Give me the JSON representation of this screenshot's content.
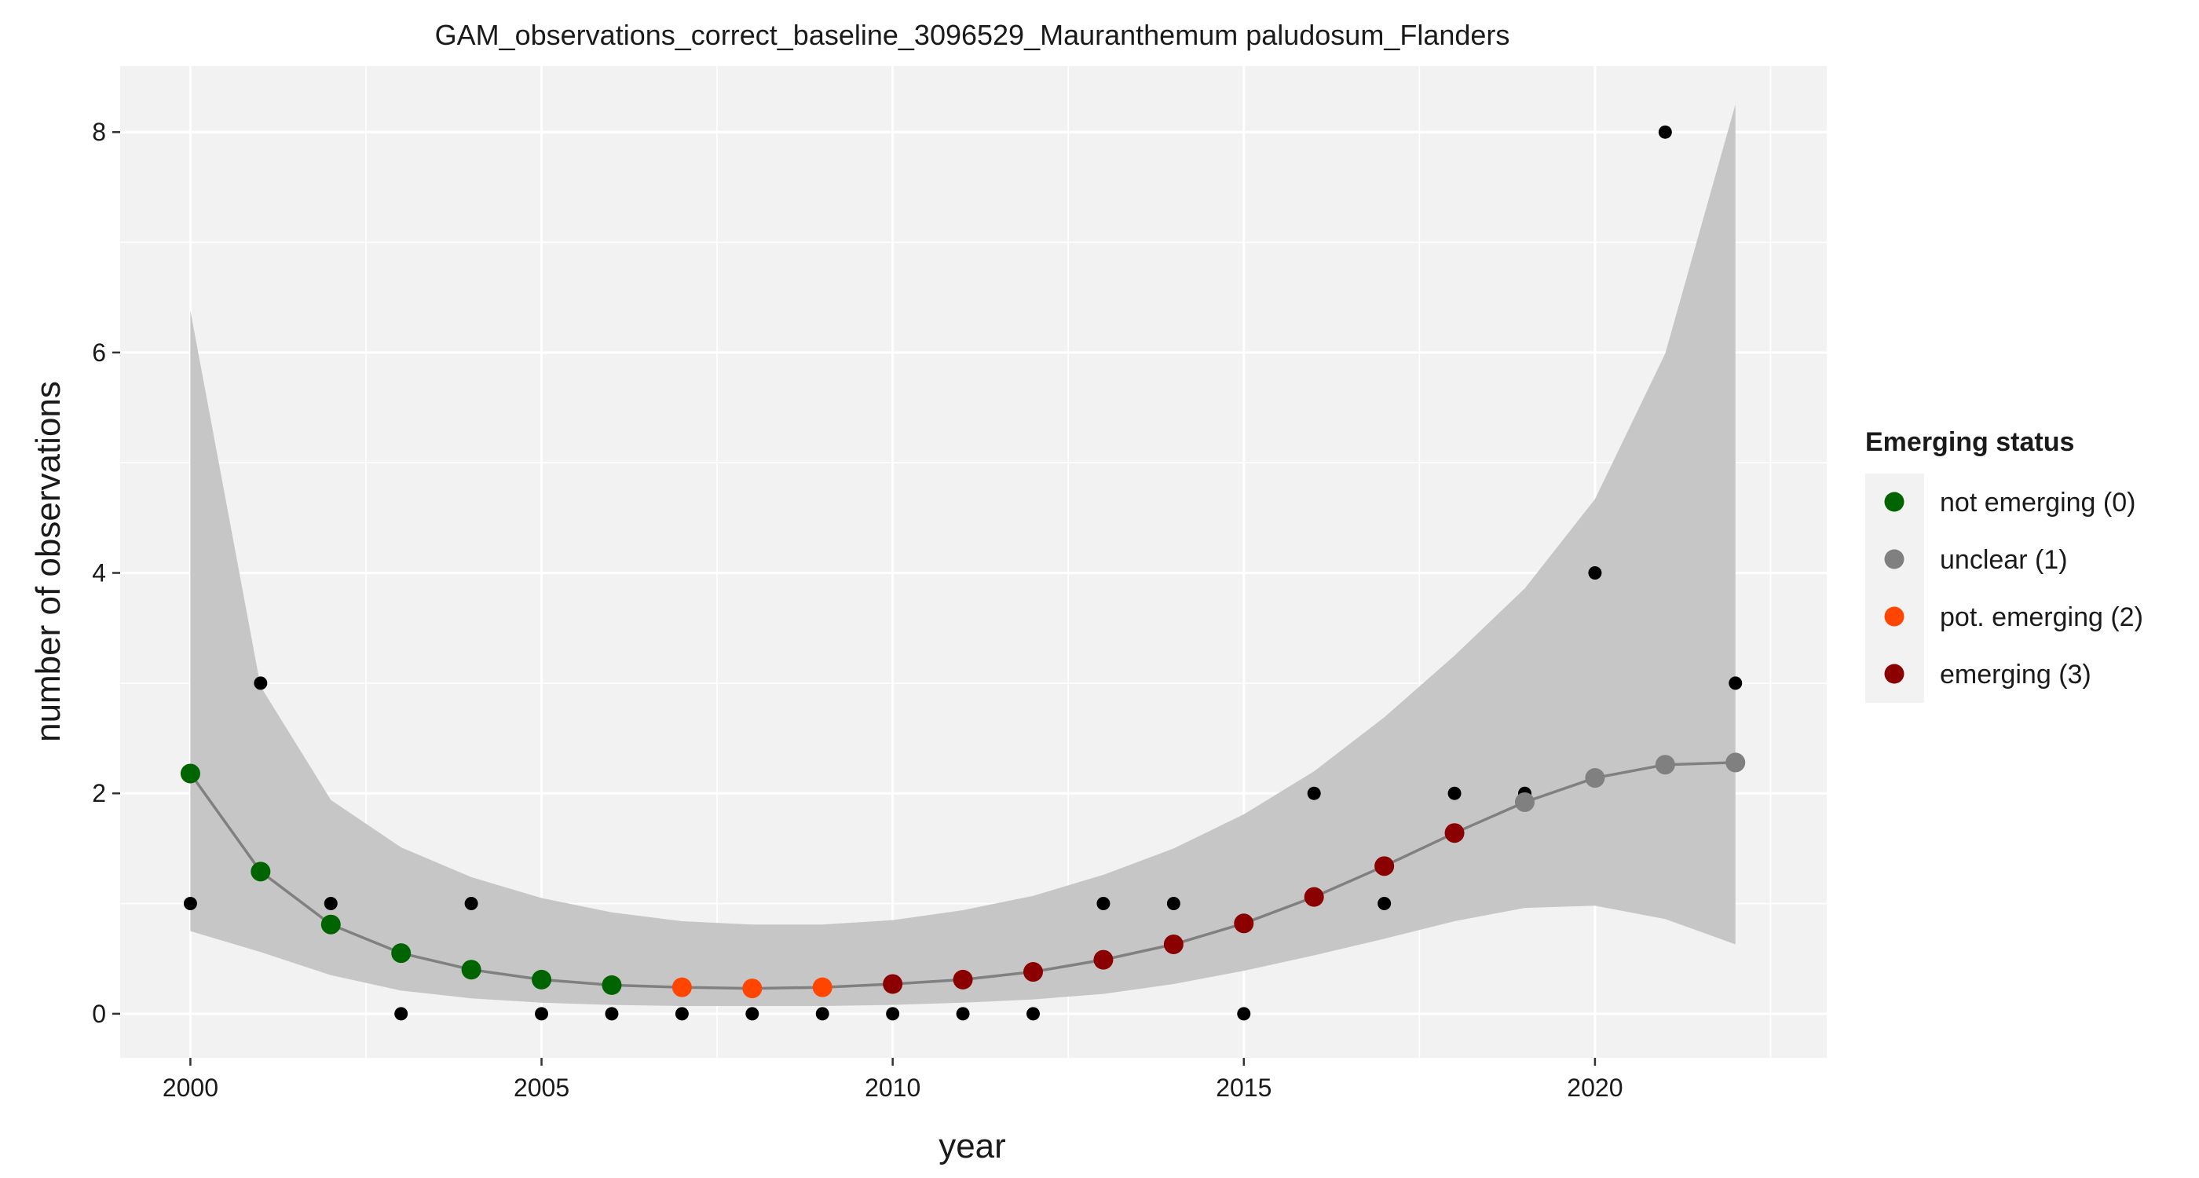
{
  "chart_data": {
    "type": "scatter",
    "title": "GAM_observations_correct_baseline_3096529_Mauranthemum paludosum_Flanders",
    "xlabel": "year",
    "ylabel": "number of observations",
    "xlim": [
      1999,
      2023.3
    ],
    "ylim": [
      -0.4,
      8.6
    ],
    "x_ticks": [
      2000,
      2005,
      2010,
      2015,
      2020
    ],
    "y_ticks": [
      0,
      2,
      4,
      6,
      8
    ],
    "grid": true,
    "legend_position": "right",
    "colors": {
      "panel": "#f2f2f2",
      "grid": "#ffffff",
      "ribbon": "#c6c6c6",
      "fit_line": "#808080",
      "observed": "#000000"
    },
    "legend": {
      "title": "Emerging status",
      "items": [
        {
          "label": "not emerging (0)",
          "status": 0,
          "color": "#006400"
        },
        {
          "label": "unclear (1)",
          "status": 1,
          "color": "#808080"
        },
        {
          "label": "pot. emerging (2)",
          "status": 2,
          "color": "#ff4500"
        },
        {
          "label": "emerging (3)",
          "status": 3,
          "color": "#8b0000"
        }
      ]
    },
    "series": [
      {
        "role": "observed",
        "x": [
          2000,
          2001,
          2002,
          2003,
          2004,
          2005,
          2006,
          2007,
          2008,
          2009,
          2010,
          2011,
          2012,
          2013,
          2014,
          2015,
          2016,
          2017,
          2018,
          2019,
          2020,
          2021,
          2022
        ],
        "values": [
          1,
          3,
          1,
          0,
          1,
          0,
          0,
          0,
          0,
          0,
          0,
          0,
          0,
          1,
          1,
          0,
          2,
          1,
          2,
          2,
          4,
          8,
          3
        ]
      },
      {
        "role": "fit",
        "x": [
          2000,
          2001,
          2002,
          2003,
          2004,
          2005,
          2006,
          2007,
          2008,
          2009,
          2010,
          2011,
          2012,
          2013,
          2014,
          2015,
          2016,
          2017,
          2018,
          2019,
          2020,
          2021,
          2022
        ],
        "values": [
          2.18,
          1.29,
          0.81,
          0.55,
          0.4,
          0.31,
          0.26,
          0.24,
          0.23,
          0.24,
          0.27,
          0.31,
          0.38,
          0.49,
          0.63,
          0.82,
          1.06,
          1.34,
          1.64,
          1.92,
          2.14,
          2.26,
          2.28
        ],
        "lower": [
          0.75,
          0.56,
          0.35,
          0.21,
          0.14,
          0.1,
          0.08,
          0.07,
          0.07,
          0.07,
          0.08,
          0.1,
          0.13,
          0.18,
          0.27,
          0.39,
          0.53,
          0.68,
          0.84,
          0.96,
          0.98,
          0.86,
          0.63
        ],
        "upper": [
          6.38,
          2.97,
          1.94,
          1.51,
          1.24,
          1.05,
          0.92,
          0.84,
          0.81,
          0.81,
          0.85,
          0.94,
          1.07,
          1.26,
          1.5,
          1.81,
          2.2,
          2.69,
          3.25,
          3.86,
          4.67,
          5.99,
          8.25
        ],
        "status": [
          0,
          0,
          0,
          0,
          0,
          0,
          0,
          2,
          2,
          2,
          3,
          3,
          3,
          3,
          3,
          3,
          3,
          3,
          3,
          1,
          1,
          1,
          1
        ]
      }
    ]
  }
}
